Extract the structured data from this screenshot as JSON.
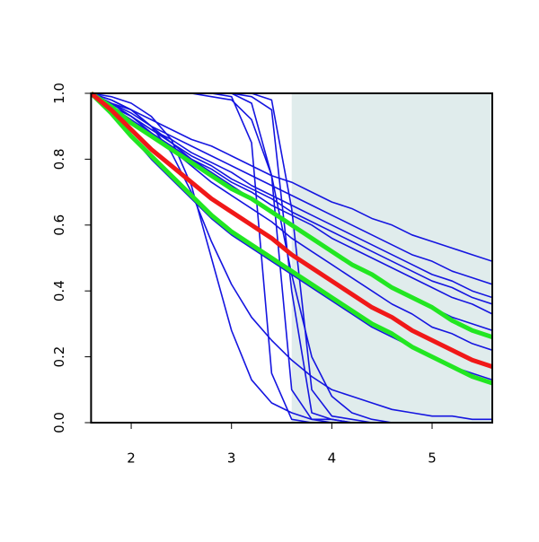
{
  "chart_data": {
    "type": "line",
    "xlim": [
      1.6,
      5.6
    ],
    "ylim": [
      0,
      1
    ],
    "xticks": [
      2,
      3,
      4,
      5
    ],
    "yticks": [
      {
        "value": 0,
        "label": "0.0"
      },
      0.2,
      0.4,
      0.6,
      0.8,
      {
        "value": 1,
        "label": "1.0"
      }
    ],
    "shaded_region": {
      "x": [
        3.6,
        5.6
      ],
      "color": "#e0ecec"
    },
    "x": [
      1.6,
      1.8,
      2.0,
      2.2,
      2.4,
      2.6,
      2.8,
      3.0,
      3.2,
      3.4,
      3.6,
      3.8,
      4.0,
      4.2,
      4.4,
      4.6,
      4.8,
      5.0,
      5.2,
      5.4,
      5.6
    ],
    "series": [
      {
        "color": "#1515e0",
        "values": [
          1,
          0.97,
          0.95,
          0.92,
          0.89,
          0.86,
          0.84,
          0.81,
          0.78,
          0.75,
          0.73,
          0.7,
          0.67,
          0.65,
          0.62,
          0.6,
          0.57,
          0.55,
          0.53,
          0.51,
          0.49
        ]
      },
      {
        "color": "#1515e0",
        "values": [
          1,
          0.97,
          0.94,
          0.9,
          0.87,
          0.84,
          0.81,
          0.78,
          0.75,
          0.72,
          0.69,
          0.66,
          0.63,
          0.6,
          0.57,
          0.54,
          0.51,
          0.49,
          0.46,
          0.44,
          0.42
        ]
      },
      {
        "color": "#1515e0",
        "values": [
          1,
          0.96,
          0.93,
          0.89,
          0.86,
          0.82,
          0.79,
          0.76,
          0.72,
          0.69,
          0.66,
          0.63,
          0.6,
          0.57,
          0.54,
          0.51,
          0.48,
          0.45,
          0.43,
          0.4,
          0.38
        ]
      },
      {
        "color": "#1515e0",
        "values": [
          1,
          0.97,
          0.93,
          0.89,
          0.85,
          0.81,
          0.78,
          0.74,
          0.71,
          0.68,
          0.64,
          0.61,
          0.58,
          0.55,
          0.52,
          0.49,
          0.46,
          0.43,
          0.41,
          0.38,
          0.36
        ]
      },
      {
        "color": "#1515e0",
        "values": [
          1,
          0.96,
          0.92,
          0.88,
          0.84,
          0.8,
          0.77,
          0.73,
          0.7,
          0.66,
          0.63,
          0.6,
          0.56,
          0.53,
          0.5,
          0.47,
          0.44,
          0.41,
          0.38,
          0.36,
          0.33
        ]
      },
      {
        "color": "#1515e0",
        "values": [
          1,
          0.98,
          0.95,
          0.9,
          0.85,
          0.8,
          0.76,
          0.72,
          0.68,
          0.64,
          0.6,
          0.56,
          0.52,
          0.48,
          0.45,
          0.41,
          0.38,
          0.35,
          0.32,
          0.3,
          0.28
        ]
      },
      {
        "color": "#1515e0",
        "values": [
          1,
          0.97,
          0.93,
          0.88,
          0.83,
          0.78,
          0.73,
          0.69,
          0.65,
          0.61,
          0.56,
          0.52,
          0.48,
          0.44,
          0.4,
          0.36,
          0.33,
          0.29,
          0.27,
          0.24,
          0.22
        ]
      },
      {
        "color": "#1515e0",
        "values": [
          1,
          0.94,
          0.87,
          0.8,
          0.74,
          0.68,
          0.62,
          0.57,
          0.53,
          0.49,
          0.45,
          0.41,
          0.37,
          0.33,
          0.29,
          0.26,
          0.23,
          0.2,
          0.17,
          0.15,
          0.13
        ]
      },
      {
        "color": "#1515e0",
        "values": [
          1,
          0.98,
          0.95,
          0.9,
          0.82,
          0.7,
          0.55,
          0.42,
          0.32,
          0.25,
          0.19,
          0.14,
          0.1,
          0.08,
          0.06,
          0.04,
          0.03,
          0.02,
          0.02,
          0.01,
          0.01
        ]
      },
      {
        "color": "#1515e0",
        "values": [
          1,
          0.99,
          0.97,
          0.93,
          0.86,
          0.72,
          0.5,
          0.28,
          0.13,
          0.06,
          0.03,
          0.01,
          0.01,
          0,
          0,
          0,
          0,
          0,
          0,
          0,
          0
        ]
      },
      {
        "color": "#1515e0",
        "values": [
          1,
          1,
          1,
          1,
          1,
          1,
          1,
          0.99,
          0.85,
          0.15,
          0.01,
          0,
          0,
          0,
          0,
          0,
          0,
          0,
          0,
          0,
          0
        ]
      },
      {
        "color": "#1515e0",
        "values": [
          1,
          1,
          1,
          1,
          1,
          1,
          1,
          1,
          0.97,
          0.75,
          0.1,
          0.01,
          0,
          0,
          0,
          0,
          0,
          0,
          0,
          0,
          0
        ]
      },
      {
        "color": "#1515e0",
        "values": [
          1,
          1,
          1,
          1,
          1,
          1,
          1,
          1,
          0.99,
          0.95,
          0.4,
          0.03,
          0.01,
          0,
          0,
          0,
          0,
          0,
          0,
          0,
          0
        ]
      },
      {
        "color": "#1515e0",
        "values": [
          1,
          1,
          1,
          1,
          1,
          1,
          1,
          1,
          1,
          0.98,
          0.65,
          0.1,
          0.02,
          0.01,
          0,
          0,
          0,
          0,
          0,
          0,
          0
        ]
      },
      {
        "color": "#1515e0",
        "values": [
          1,
          1,
          1,
          1,
          1,
          1,
          0.99,
          0.98,
          0.92,
          0.75,
          0.45,
          0.2,
          0.08,
          0.03,
          0.01,
          0,
          0,
          0,
          0,
          0,
          0
        ]
      },
      {
        "color": "#22e622",
        "values": [
          1,
          0.96,
          0.91,
          0.87,
          0.83,
          0.79,
          0.75,
          0.71,
          0.68,
          0.64,
          0.6,
          0.56,
          0.52,
          0.48,
          0.45,
          0.41,
          0.38,
          0.35,
          0.31,
          0.28,
          0.26
        ]
      },
      {
        "color": "#22e622",
        "values": [
          1,
          0.94,
          0.87,
          0.81,
          0.75,
          0.69,
          0.63,
          0.58,
          0.54,
          0.5,
          0.46,
          0.42,
          0.38,
          0.34,
          0.3,
          0.27,
          0.23,
          0.2,
          0.17,
          0.14,
          0.12
        ]
      },
      {
        "color": "#f01818",
        "values": [
          1,
          0.95,
          0.89,
          0.83,
          0.78,
          0.73,
          0.68,
          0.64,
          0.6,
          0.56,
          0.51,
          0.47,
          0.43,
          0.39,
          0.35,
          0.32,
          0.28,
          0.25,
          0.22,
          0.19,
          0.17
        ]
      }
    ]
  }
}
